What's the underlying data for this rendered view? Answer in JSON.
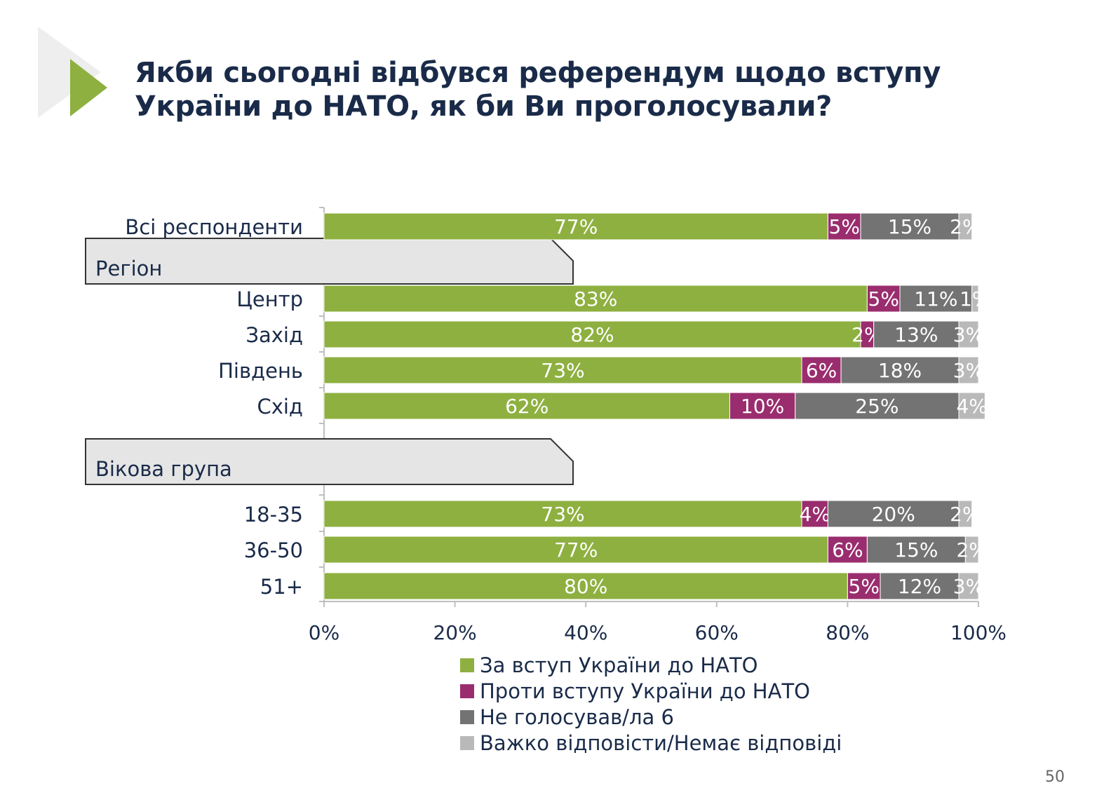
{
  "title_lines": [
    "Якби сьогодні відбувся референдум щодо вступу",
    "України до НАТО, як би Ви проголосували?"
  ],
  "page_number": "50",
  "colors": {
    "for": "#8eb040",
    "against": "#9a2d6e",
    "not_vote": "#737373",
    "hard_to_say": "#b9b9b9",
    "deco_green": "#8eb040",
    "deco_light": "#eeeeee"
  },
  "chart_data": {
    "type": "bar",
    "orientation": "horizontal",
    "stacked": true,
    "categories": [
      "Всі респонденти",
      "Центр",
      "Захід",
      "Південь",
      "Схід",
      "18-35",
      "36-50",
      "51+"
    ],
    "groups": [
      {
        "label": "Регіон",
        "before_category": "Центр"
      },
      {
        "label": "Вікова група",
        "before_category": "18-35"
      }
    ],
    "series": [
      {
        "name": "За вступ України до НАТО",
        "color_key": "for",
        "values": [
          77,
          83,
          82,
          73,
          62,
          73,
          77,
          80
        ]
      },
      {
        "name": "Проти вступу України до НАТО",
        "color_key": "against",
        "values": [
          5,
          5,
          2,
          6,
          10,
          4,
          6,
          5
        ]
      },
      {
        "name": "Не голосував/ла 6",
        "color_key": "not_vote",
        "values": [
          15,
          11,
          13,
          18,
          25,
          20,
          15,
          12
        ]
      },
      {
        "name": "Важко відповісти/Немає відповіді",
        "color_key": "hard_to_say",
        "values": [
          2,
          1,
          3,
          3,
          4,
          2,
          2,
          3
        ]
      }
    ],
    "x_ticks": [
      0,
      20,
      40,
      60,
      80,
      100
    ],
    "x_tick_suffix": "%",
    "xlim": [
      0,
      100
    ],
    "value_suffix": "%",
    "legend_position": "bottom"
  }
}
